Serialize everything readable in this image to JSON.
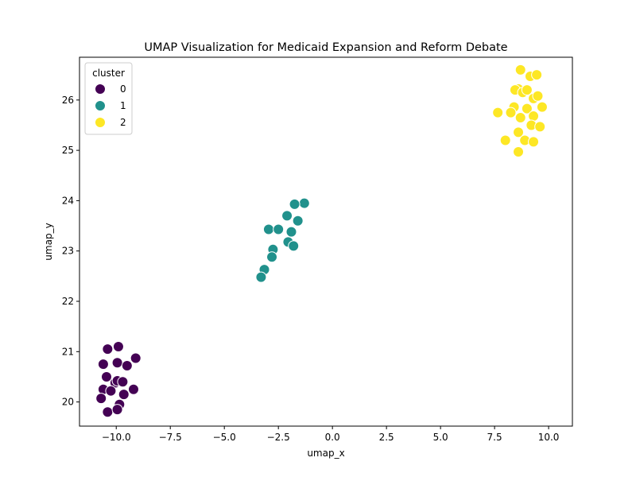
{
  "chart_data": {
    "type": "scatter",
    "title": "UMAP Visualization for Medicaid Expansion and Reform Debate",
    "xlabel": "umap_x",
    "ylabel": "umap_y",
    "xlim": [
      -11.7,
      11.1
    ],
    "ylim": [
      19.52,
      26.85
    ],
    "xticks": [
      -10.0,
      -7.5,
      -5.0,
      -2.5,
      0.0,
      2.5,
      5.0,
      7.5,
      10.0
    ],
    "xtick_labels": [
      "−10.0",
      "−7.5",
      "−5.0",
      "−2.5",
      "0.0",
      "2.5",
      "5.0",
      "7.5",
      "10.0"
    ],
    "yticks": [
      20,
      21,
      22,
      23,
      24,
      25,
      26
    ],
    "ytick_labels": [
      "20",
      "21",
      "22",
      "23",
      "24",
      "25",
      "26"
    ],
    "grid": false,
    "legend": {
      "title": "cluster",
      "placement": "top-left",
      "entries": [
        "0",
        "1",
        "2"
      ]
    },
    "colors": {
      "0": "#440154",
      "1": "#21918c",
      "2": "#fde725"
    },
    "series": [
      {
        "name": "0",
        "points": [
          [
            -10.4,
            21.05
          ],
          [
            -9.9,
            21.1
          ],
          [
            -9.1,
            20.87
          ],
          [
            -10.6,
            20.75
          ],
          [
            -9.95,
            20.78
          ],
          [
            -9.5,
            20.72
          ],
          [
            -10.45,
            20.5
          ],
          [
            -10.05,
            20.38
          ],
          [
            -9.95,
            20.42
          ],
          [
            -9.7,
            20.4
          ],
          [
            -10.6,
            20.25
          ],
          [
            -10.25,
            20.22
          ],
          [
            -9.65,
            20.15
          ],
          [
            -9.2,
            20.25
          ],
          [
            -10.7,
            20.07
          ],
          [
            -9.85,
            19.95
          ],
          [
            -10.4,
            19.8
          ],
          [
            -9.95,
            19.85
          ]
        ]
      },
      {
        "name": "1",
        "points": [
          [
            -1.3,
            23.95
          ],
          [
            -1.75,
            23.93
          ],
          [
            -2.1,
            23.7
          ],
          [
            -1.6,
            23.6
          ],
          [
            -2.95,
            23.43
          ],
          [
            -2.5,
            23.43
          ],
          [
            -1.9,
            23.38
          ],
          [
            -2.05,
            23.18
          ],
          [
            -1.8,
            23.1
          ],
          [
            -2.75,
            23.03
          ],
          [
            -2.8,
            22.88
          ],
          [
            -3.15,
            22.63
          ],
          [
            -3.3,
            22.48
          ]
        ]
      },
      {
        "name": "2",
        "points": [
          [
            8.7,
            26.6
          ],
          [
            9.15,
            26.47
          ],
          [
            9.45,
            26.5
          ],
          [
            8.6,
            26.22
          ],
          [
            8.45,
            26.2
          ],
          [
            8.8,
            26.15
          ],
          [
            9.0,
            26.2
          ],
          [
            9.3,
            26.03
          ],
          [
            9.5,
            26.08
          ],
          [
            8.4,
            25.86
          ],
          [
            9.0,
            25.83
          ],
          [
            9.7,
            25.86
          ],
          [
            7.65,
            25.75
          ],
          [
            8.25,
            25.75
          ],
          [
            8.7,
            25.65
          ],
          [
            9.3,
            25.68
          ],
          [
            9.2,
            25.5
          ],
          [
            9.6,
            25.47
          ],
          [
            8.6,
            25.36
          ],
          [
            8.0,
            25.2
          ],
          [
            8.9,
            25.2
          ],
          [
            9.3,
            25.17
          ],
          [
            8.6,
            24.97
          ]
        ]
      }
    ]
  }
}
